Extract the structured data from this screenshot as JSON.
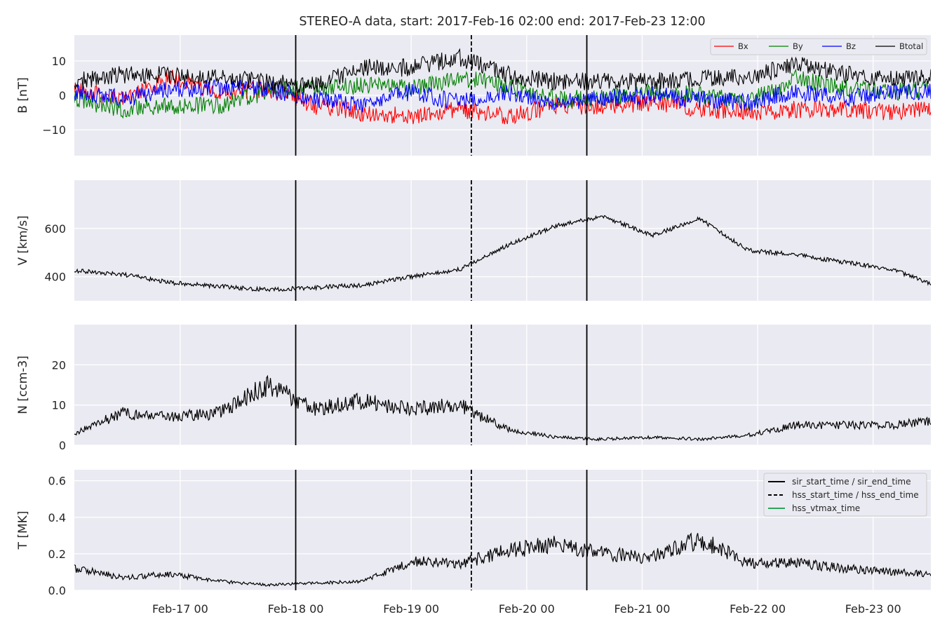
{
  "figure": {
    "title": "STEREO-A data, start: 2017-Feb-16 02:00  end: 2017-Feb-23 12:00"
  },
  "chart_data": [
    {
      "type": "line",
      "panel": "magnetic-field",
      "ylabel": "B [nT]",
      "xlabel": "",
      "xlim": [
        "2017-02-16T02:00",
        "2017-02-23T12:00"
      ],
      "ylim": [
        -17.5,
        17.5
      ],
      "yticks": [
        -10,
        0,
        10
      ],
      "ytick_labels": [
        "−10",
        "0",
        "10"
      ],
      "grid": true,
      "legend": "top-right",
      "series": [
        {
          "name": "Bx",
          "color": "#ff0000",
          "x": [
            "2017-02-16T02:00",
            "2017-02-16T12:00",
            "2017-02-16T22:00",
            "2017-02-17T08:00",
            "2017-02-17T18:00",
            "2017-02-18T04:00",
            "2017-02-18T14:00",
            "2017-02-19T00:00",
            "2017-02-19T10:00",
            "2017-02-19T20:00",
            "2017-02-20T06:00",
            "2017-02-20T16:00",
            "2017-02-21T02:00",
            "2017-02-21T12:00",
            "2017-02-21T22:00",
            "2017-02-22T08:00",
            "2017-02-22T18:00",
            "2017-02-23T04:00",
            "2017-02-23T12:00"
          ],
          "values": [
            2,
            -1,
            5,
            1,
            2,
            -3,
            -5,
            -6,
            -4,
            -6,
            -3,
            -3,
            -2,
            -4,
            -5,
            -4,
            -4,
            -5,
            -4
          ]
        },
        {
          "name": "By",
          "color": "#008000",
          "x": [
            "2017-02-16T02:00",
            "2017-02-16T12:00",
            "2017-02-16T22:00",
            "2017-02-17T08:00",
            "2017-02-17T18:00",
            "2017-02-18T04:00",
            "2017-02-18T14:00",
            "2017-02-19T00:00",
            "2017-02-19T10:00",
            "2017-02-19T20:00",
            "2017-02-20T06:00",
            "2017-02-20T16:00",
            "2017-02-21T02:00",
            "2017-02-21T12:00",
            "2017-02-21T22:00",
            "2017-02-22T08:00",
            "2017-02-22T18:00",
            "2017-02-23T04:00",
            "2017-02-23T12:00"
          ],
          "values": [
            -1,
            -4,
            -3,
            -3,
            1,
            2,
            3,
            2,
            5,
            3,
            -1,
            -1,
            1,
            0,
            -2,
            5,
            2,
            1,
            2
          ]
        },
        {
          "name": "Bz",
          "color": "#0000ff",
          "x": [
            "2017-02-16T02:00",
            "2017-02-16T12:00",
            "2017-02-16T22:00",
            "2017-02-17T08:00",
            "2017-02-17T18:00",
            "2017-02-18T04:00",
            "2017-02-18T14:00",
            "2017-02-19T00:00",
            "2017-02-19T10:00",
            "2017-02-19T20:00",
            "2017-02-20T06:00",
            "2017-02-20T16:00",
            "2017-02-21T02:00",
            "2017-02-21T12:00",
            "2017-02-21T22:00",
            "2017-02-22T08:00",
            "2017-02-22T18:00",
            "2017-02-23T04:00",
            "2017-02-23T12:00"
          ],
          "values": [
            1,
            -1,
            2,
            2,
            2,
            -1,
            -3,
            1,
            -2,
            1,
            -2,
            -1,
            0,
            -1,
            -2,
            1,
            -1,
            1,
            1
          ]
        },
        {
          "name": "Btotal",
          "color": "#000000",
          "x": [
            "2017-02-16T02:00",
            "2017-02-16T12:00",
            "2017-02-16T22:00",
            "2017-02-17T08:00",
            "2017-02-17T18:00",
            "2017-02-18T04:00",
            "2017-02-18T14:00",
            "2017-02-19T00:00",
            "2017-02-19T10:00",
            "2017-02-19T20:00",
            "2017-02-20T06:00",
            "2017-02-20T16:00",
            "2017-02-21T02:00",
            "2017-02-21T12:00",
            "2017-02-21T22:00",
            "2017-02-22T08:00",
            "2017-02-22T18:00",
            "2017-02-23T04:00",
            "2017-02-23T12:00"
          ],
          "values": [
            4,
            6,
            6,
            5,
            4,
            3,
            8,
            8,
            11,
            6,
            4,
            4,
            4,
            5,
            5,
            9,
            6,
            5,
            5
          ]
        }
      ]
    },
    {
      "type": "line",
      "panel": "speed",
      "ylabel": "V [km/s]",
      "xlabel": "",
      "xlim": [
        "2017-02-16T02:00",
        "2017-02-23T12:00"
      ],
      "ylim": [
        300,
        800
      ],
      "yticks": [
        400,
        600
      ],
      "ytick_labels": [
        "400",
        "600"
      ],
      "grid": true,
      "series": [
        {
          "color": "#000000",
          "x": [
            "2017-02-16T02:00",
            "2017-02-16T12:00",
            "2017-02-16T22:00",
            "2017-02-17T08:00",
            "2017-02-17T18:00",
            "2017-02-18T04:00",
            "2017-02-18T14:00",
            "2017-02-19T00:00",
            "2017-02-19T10:00",
            "2017-02-19T20:00",
            "2017-02-20T06:00",
            "2017-02-20T16:00",
            "2017-02-21T02:00",
            "2017-02-21T12:00",
            "2017-02-21T22:00",
            "2017-02-22T08:00",
            "2017-02-22T18:00",
            "2017-02-23T04:00",
            "2017-02-23T12:00"
          ],
          "values": [
            425,
            410,
            375,
            360,
            345,
            355,
            365,
            400,
            430,
            530,
            610,
            650,
            570,
            640,
            510,
            490,
            460,
            430,
            370
          ]
        }
      ]
    },
    {
      "type": "line",
      "panel": "density",
      "ylabel": "N [ccm-3]",
      "xlabel": "",
      "xlim": [
        "2017-02-16T02:00",
        "2017-02-23T12:00"
      ],
      "ylim": [
        0,
        30
      ],
      "yticks": [
        0,
        10,
        20
      ],
      "ytick_labels": [
        "0",
        "10",
        "20"
      ],
      "grid": true,
      "series": [
        {
          "color": "#000000",
          "x": [
            "2017-02-16T02:00",
            "2017-02-16T12:00",
            "2017-02-16T22:00",
            "2017-02-17T08:00",
            "2017-02-17T18:00",
            "2017-02-18T04:00",
            "2017-02-18T14:00",
            "2017-02-19T00:00",
            "2017-02-19T10:00",
            "2017-02-19T20:00",
            "2017-02-20T06:00",
            "2017-02-20T16:00",
            "2017-02-21T02:00",
            "2017-02-21T12:00",
            "2017-02-21T22:00",
            "2017-02-22T08:00",
            "2017-02-22T18:00",
            "2017-02-23T04:00",
            "2017-02-23T12:00"
          ],
          "values": [
            3,
            8,
            7,
            8,
            15,
            9,
            11,
            9,
            10,
            4,
            2,
            1.5,
            2,
            1.5,
            2.5,
            5,
            5,
            5,
            6
          ]
        }
      ]
    },
    {
      "type": "line",
      "panel": "temperature",
      "ylabel": "T [MK]",
      "xlabel": "",
      "xlim": [
        "2017-02-16T02:00",
        "2017-02-23T12:00"
      ],
      "ylim": [
        0,
        0.66
      ],
      "yticks": [
        0.0,
        0.2,
        0.4,
        0.6
      ],
      "ytick_labels": [
        "0.0",
        "0.2",
        "0.4",
        "0.6"
      ],
      "xticks": [
        "2017-02-17T00:00",
        "2017-02-18T00:00",
        "2017-02-19T00:00",
        "2017-02-20T00:00",
        "2017-02-21T00:00",
        "2017-02-22T00:00",
        "2017-02-23T00:00"
      ],
      "xtick_labels": [
        "Feb-17 00",
        "Feb-18 00",
        "Feb-19 00",
        "Feb-20 00",
        "Feb-21 00",
        "Feb-22 00",
        "Feb-23 00"
      ],
      "grid": true,
      "legend": "top-right",
      "series": [
        {
          "color": "#000000",
          "x": [
            "2017-02-16T02:00",
            "2017-02-16T12:00",
            "2017-02-16T22:00",
            "2017-02-17T08:00",
            "2017-02-17T18:00",
            "2017-02-18T04:00",
            "2017-02-18T14:00",
            "2017-02-19T00:00",
            "2017-02-19T10:00",
            "2017-02-19T20:00",
            "2017-02-20T06:00",
            "2017-02-20T16:00",
            "2017-02-21T02:00",
            "2017-02-21T12:00",
            "2017-02-21T22:00",
            "2017-02-22T08:00",
            "2017-02-22T18:00",
            "2017-02-23T04:00",
            "2017-02-23T12:00"
          ],
          "values": [
            0.12,
            0.07,
            0.09,
            0.05,
            0.03,
            0.04,
            0.05,
            0.16,
            0.14,
            0.22,
            0.25,
            0.2,
            0.18,
            0.28,
            0.15,
            0.15,
            0.12,
            0.1,
            0.09
          ]
        }
      ]
    }
  ],
  "event_lines": [
    {
      "legend_label": "sir_start_time / sir_end_time",
      "style": "solid",
      "color": "#000000",
      "times": [
        "2017-02-18T00:00",
        "2017-02-20T12:30"
      ]
    },
    {
      "legend_label": "hss_start_time / hss_end_time",
      "style": "dashed",
      "color": "#000000",
      "times": [
        "2017-02-19T12:30"
      ]
    },
    {
      "legend_label": "hss_vtmax_time",
      "style": "solid",
      "color": "#2ca55a",
      "times": []
    }
  ],
  "style": {
    "axes_bg": "#eaeaf2",
    "grid_color": "#ffffff",
    "text_color": "#262626"
  }
}
